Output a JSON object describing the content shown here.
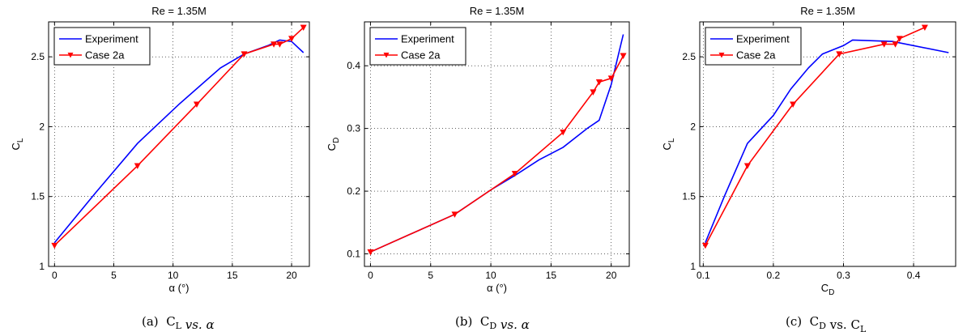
{
  "chart_data": [
    {
      "type": "line",
      "title": "Re = 1.35M",
      "xlabel": "α (°)",
      "ylabel": "C_L",
      "xlim": [
        -0.5,
        21.5
      ],
      "ylim": [
        1,
        2.75
      ],
      "xticks": [
        0,
        5,
        10,
        15,
        20
      ],
      "yticks": [
        1,
        1.5,
        2,
        2.5
      ],
      "grid": "dotted",
      "legend": "top-left",
      "caption": "(a)  C_L vs. α",
      "series": [
        {
          "name": "Experiment",
          "color": "#0000ff",
          "marker": "none",
          "x": [
            0,
            3.5,
            7,
            10.5,
            14,
            16,
            18,
            19,
            20,
            21
          ],
          "y": [
            1.17,
            1.53,
            1.88,
            2.16,
            2.42,
            2.52,
            2.58,
            2.62,
            2.61,
            2.53
          ]
        },
        {
          "name": "Case 2a",
          "color": "#ff0000",
          "marker": "triangle-down",
          "x": [
            0,
            7,
            12,
            16,
            18.5,
            19,
            20,
            21
          ],
          "y": [
            1.15,
            1.72,
            2.16,
            2.52,
            2.59,
            2.59,
            2.63,
            2.71
          ]
        }
      ]
    },
    {
      "type": "line",
      "title": "Re = 1.35M",
      "xlabel": "α (°)",
      "ylabel": "C_D",
      "xlim": [
        -0.5,
        21.5
      ],
      "ylim": [
        0.08,
        0.47
      ],
      "xticks": [
        0,
        5,
        10,
        15,
        20
      ],
      "yticks": [
        0.1,
        0.2,
        0.3,
        0.4
      ],
      "grid": "dotted",
      "legend": "top-left",
      "caption": "(b)  C_D vs. α",
      "series": [
        {
          "name": "Experiment",
          "color": "#0000ff",
          "marker": "none",
          "x": [
            0,
            7,
            10,
            12,
            14,
            16,
            18,
            19,
            20,
            21
          ],
          "y": [
            0.103,
            0.163,
            0.202,
            0.225,
            0.25,
            0.27,
            0.3,
            0.313,
            0.37,
            0.45
          ]
        },
        {
          "name": "Case 2a",
          "color": "#ff0000",
          "marker": "triangle-down",
          "x": [
            0,
            7,
            12,
            16,
            18.5,
            19,
            20,
            21
          ],
          "y": [
            0.103,
            0.163,
            0.228,
            0.294,
            0.358,
            0.374,
            0.38,
            0.416
          ]
        }
      ]
    },
    {
      "type": "line",
      "title": "Re = 1.35M",
      "xlabel": "C_D",
      "ylabel": "C_L",
      "xlim": [
        0.095,
        0.46
      ],
      "ylim": [
        1,
        2.75
      ],
      "xticks": [
        0.1,
        0.2,
        0.3,
        0.4
      ],
      "yticks": [
        1,
        1.5,
        2,
        2.5
      ],
      "grid": "dotted",
      "legend": "top-left",
      "caption": "(c)  C_D vs. C_L",
      "series": [
        {
          "name": "Experiment",
          "color": "#0000ff",
          "marker": "none",
          "x": [
            0.103,
            0.13,
            0.163,
            0.2,
            0.225,
            0.25,
            0.27,
            0.3,
            0.313,
            0.37,
            0.45
          ],
          "y": [
            1.17,
            1.5,
            1.88,
            2.08,
            2.27,
            2.42,
            2.52,
            2.58,
            2.62,
            2.61,
            2.53
          ]
        },
        {
          "name": "Case 2a",
          "color": "#ff0000",
          "marker": "triangle-down",
          "x": [
            0.103,
            0.163,
            0.228,
            0.294,
            0.358,
            0.374,
            0.38,
            0.416
          ],
          "y": [
            1.15,
            1.72,
            2.16,
            2.52,
            2.59,
            2.59,
            2.63,
            2.71
          ]
        }
      ]
    }
  ]
}
